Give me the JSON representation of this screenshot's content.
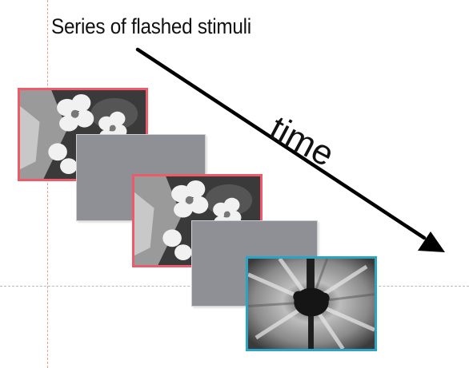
{
  "title": "Series of flashed stimuli",
  "time_label": "time",
  "colors": {
    "flower_frame_border": "#ee5a6a",
    "blurred_frame_border": "#2aa4c4",
    "blank_frame_fill": "#8f9096",
    "arrow": "#000000"
  },
  "frames": [
    {
      "kind": "flower-image",
      "border": "#ee5a6a"
    },
    {
      "kind": "blank-gray",
      "border": "#cfcfd2"
    },
    {
      "kind": "flower-image",
      "border": "#ee5a6a"
    },
    {
      "kind": "blank-gray",
      "border": "#cfcfd2"
    },
    {
      "kind": "blurred-flower-image",
      "border": "#2aa4c4"
    }
  ]
}
